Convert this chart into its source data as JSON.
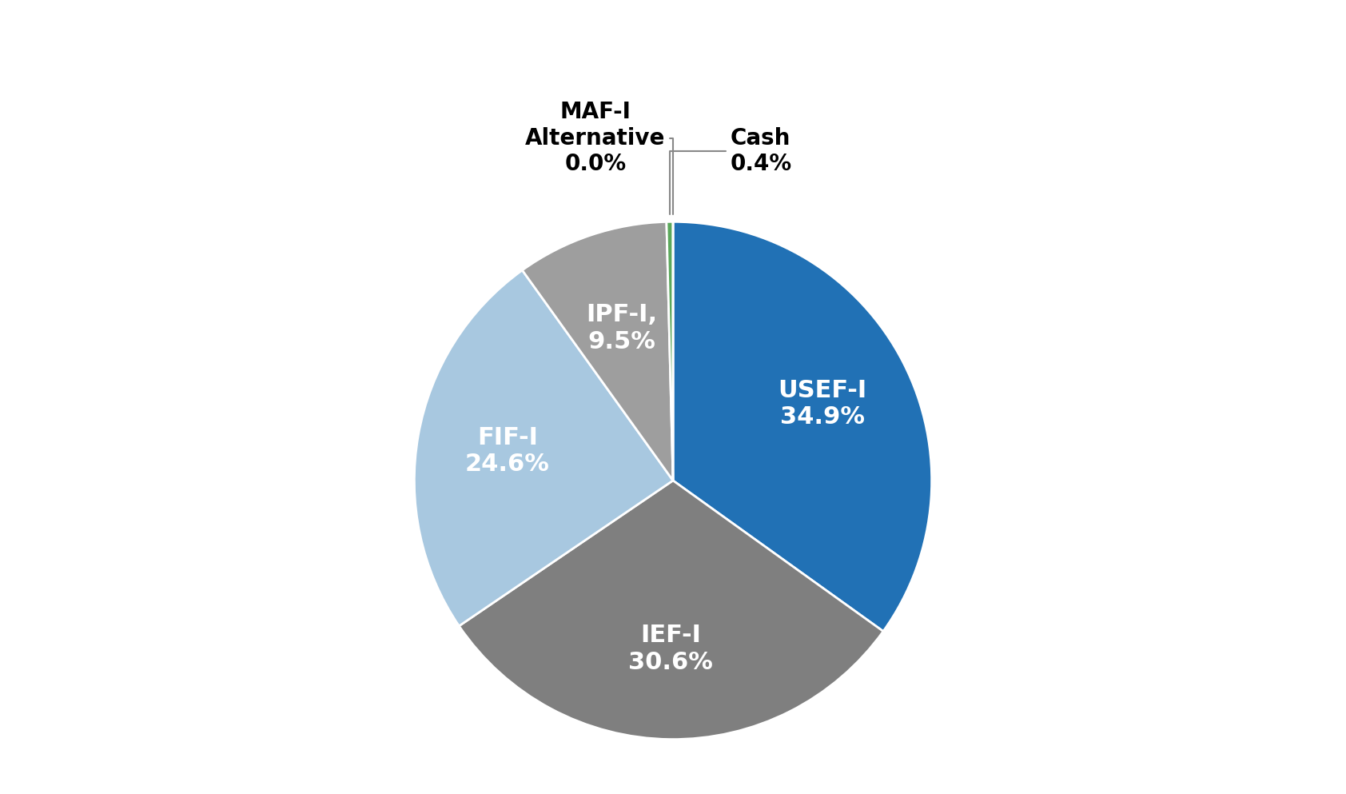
{
  "labels": [
    "USEF-I",
    "IEF-I",
    "FIF-I",
    "IPF-I,",
    "Cash",
    "MAF-I\nAlternative"
  ],
  "inner_labels": [
    "USEF-I\n34.9%",
    "IEF-I\n30.6%",
    "FIF-I\n24.6%",
    "IPF-I,\n9.5%",
    "",
    ""
  ],
  "values": [
    34.9,
    30.6,
    24.6,
    9.5,
    0.4,
    0.0
  ],
  "colors": [
    "#2171B5",
    "#7F7F7F",
    "#A8C8E0",
    "#9E9E9E",
    "#5BA85B",
    "#C0C0C0"
  ],
  "startangle": 90,
  "background_color": "#ffffff",
  "inner_label_colors": [
    "white",
    "white",
    "white",
    "white",
    "white",
    "white"
  ],
  "annotation_color": "#555555",
  "edge_color": "white",
  "edge_linewidth": 2.0
}
